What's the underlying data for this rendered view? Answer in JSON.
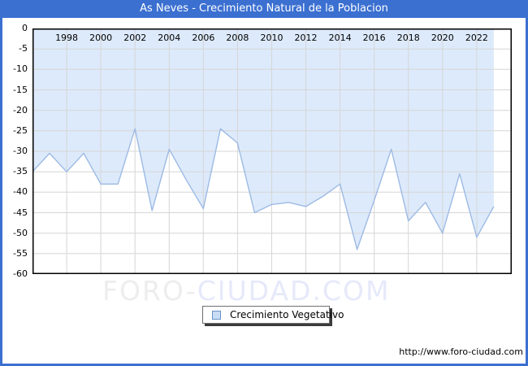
{
  "window": {
    "title": "As Neves - Crecimiento Natural de la Poblacion",
    "titlebar_bg": "#3b70d1",
    "titlebar_text_color": "#ffffff",
    "border_color": "#3b70d1"
  },
  "chart_data": {
    "type": "area",
    "title": "As Neves - Crecimiento Natural de la Poblacion",
    "x": [
      1996,
      1997,
      1998,
      1999,
      2000,
      2001,
      2002,
      2003,
      2004,
      2005,
      2006,
      2007,
      2008,
      2009,
      2010,
      2011,
      2012,
      2013,
      2014,
      2015,
      2016,
      2017,
      2018,
      2019,
      2020,
      2021,
      2022,
      2023
    ],
    "values": [
      -35,
      -30.5,
      -35,
      -30.5,
      -38,
      -38,
      -24.5,
      -44.5,
      -29.5,
      -37,
      -44,
      -24.5,
      -28,
      -45,
      -43,
      -42.5,
      -43.5,
      -41,
      -38,
      -54,
      -42,
      -29.5,
      -47,
      -42.5,
      -50,
      -35.5,
      -51,
      -43.5
    ],
    "x_tick_labels": [
      "1998",
      "2000",
      "2002",
      "2004",
      "2006",
      "2008",
      "2010",
      "2012",
      "2014",
      "2016",
      "2018",
      "2020",
      "2022"
    ],
    "y_tick_labels": [
      "0",
      "-5",
      "-10",
      "-15",
      "-20",
      "-25",
      "-30",
      "-35",
      "-40",
      "-45",
      "-50",
      "-55",
      "-60"
    ],
    "xlim": [
      1996,
      2024
    ],
    "ylim": [
      0,
      -60
    ],
    "grid": true,
    "legend": {
      "label": "Crecimiento Vegetativo",
      "position": "bottom-center"
    },
    "colors": {
      "fill": "#ddeafb",
      "line": "#9dbae4",
      "grid": "#d6d6d6",
      "plot_border": "#000000"
    }
  },
  "watermark": {
    "part1": "FORO-",
    "part2": "CIUDAD.COM"
  },
  "footer": {
    "url": "http://www.foro-ciudad.com"
  }
}
